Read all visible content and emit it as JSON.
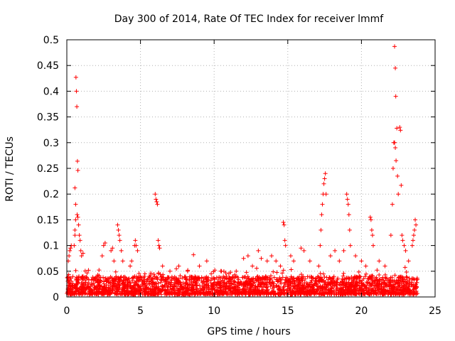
{
  "chart_data": {
    "type": "scatter",
    "title": "Day 300 of 2014, Rate Of TEC Index for receiver lmmf",
    "xlabel": "GPS time / hours",
    "ylabel": "ROTI / TECUs",
    "xlim": [
      0,
      25
    ],
    "ylim": [
      0,
      0.5
    ],
    "xticks": [
      0,
      5,
      10,
      15,
      20,
      25
    ],
    "yticks": [
      0,
      0.05,
      0.1,
      0.15,
      0.2,
      0.25,
      0.3,
      0.35,
      0.4,
      0.45,
      0.5
    ],
    "grid": true,
    "marker": "+",
    "series_color": "#ff0000",
    "background_band": {
      "x_range": [
        0,
        23.8
      ],
      "typical": [
        0.005,
        0.04
      ],
      "note": "dense continuous cluster of points along the bottom"
    },
    "series": [
      {
        "name": "ROTI",
        "points": [
          [
            0.1,
            0.07
          ],
          [
            0.15,
            0.08
          ],
          [
            0.2,
            0.09
          ],
          [
            0.25,
            0.095
          ],
          [
            0.3,
            0.1
          ],
          [
            0.5,
            0.1
          ],
          [
            0.55,
            0.12
          ],
          [
            0.55,
            0.13
          ],
          [
            0.6,
            0.15
          ],
          [
            0.6,
            0.18
          ],
          [
            0.55,
            0.212
          ],
          [
            0.62,
            0.427
          ],
          [
            0.65,
            0.4
          ],
          [
            0.68,
            0.37
          ],
          [
            0.72,
            0.264
          ],
          [
            0.75,
            0.246
          ],
          [
            0.7,
            0.16
          ],
          [
            0.75,
            0.155
          ],
          [
            0.8,
            0.14
          ],
          [
            0.85,
            0.12
          ],
          [
            0.9,
            0.11
          ],
          [
            0.95,
            0.09
          ],
          [
            1.0,
            0.08
          ],
          [
            1.1,
            0.085
          ],
          [
            2.4,
            0.08
          ],
          [
            2.5,
            0.1
          ],
          [
            2.6,
            0.105
          ],
          [
            3.0,
            0.09
          ],
          [
            3.1,
            0.095
          ],
          [
            3.2,
            0.07
          ],
          [
            3.45,
            0.14
          ],
          [
            3.5,
            0.13
          ],
          [
            3.55,
            0.12
          ],
          [
            3.6,
            0.11
          ],
          [
            3.7,
            0.09
          ],
          [
            3.8,
            0.07
          ],
          [
            4.3,
            0.06
          ],
          [
            4.4,
            0.07
          ],
          [
            4.6,
            0.1
          ],
          [
            4.65,
            0.11
          ],
          [
            4.7,
            0.1
          ],
          [
            4.8,
            0.09
          ],
          [
            5.0,
            0.04
          ],
          [
            5.3,
            0.045
          ],
          [
            5.6,
            0.04
          ],
          [
            6.0,
            0.2
          ],
          [
            6.05,
            0.19
          ],
          [
            6.1,
            0.185
          ],
          [
            6.15,
            0.18
          ],
          [
            6.2,
            0.11
          ],
          [
            6.25,
            0.1
          ],
          [
            6.3,
            0.095
          ],
          [
            6.5,
            0.06
          ],
          [
            7.0,
            0.05
          ],
          [
            7.6,
            0.06
          ],
          [
            8.2,
            0.05
          ],
          [
            8.6,
            0.082
          ],
          [
            9.0,
            0.06
          ],
          [
            9.5,
            0.07
          ],
          [
            9.8,
            0.045
          ],
          [
            10.5,
            0.05
          ],
          [
            11.0,
            0.045
          ],
          [
            11.5,
            0.05
          ],
          [
            12.0,
            0.075
          ],
          [
            12.3,
            0.08
          ],
          [
            12.6,
            0.06
          ],
          [
            13.0,
            0.09
          ],
          [
            13.2,
            0.075
          ],
          [
            13.6,
            0.07
          ],
          [
            13.9,
            0.08
          ],
          [
            14.2,
            0.07
          ],
          [
            14.5,
            0.06
          ],
          [
            14.7,
            0.145
          ],
          [
            14.75,
            0.14
          ],
          [
            14.8,
            0.11
          ],
          [
            14.85,
            0.1
          ],
          [
            15.2,
            0.08
          ],
          [
            15.4,
            0.07
          ],
          [
            15.9,
            0.095
          ],
          [
            16.1,
            0.09
          ],
          [
            16.5,
            0.07
          ],
          [
            17.1,
            0.06
          ],
          [
            17.2,
            0.1
          ],
          [
            17.25,
            0.13
          ],
          [
            17.3,
            0.16
          ],
          [
            17.35,
            0.18
          ],
          [
            17.4,
            0.2
          ],
          [
            17.45,
            0.22
          ],
          [
            17.5,
            0.23
          ],
          [
            17.55,
            0.24
          ],
          [
            17.6,
            0.2
          ],
          [
            17.9,
            0.08
          ],
          [
            18.2,
            0.09
          ],
          [
            18.5,
            0.07
          ],
          [
            18.8,
            0.09
          ],
          [
            19.0,
            0.2
          ],
          [
            19.05,
            0.19
          ],
          [
            19.1,
            0.18
          ],
          [
            19.15,
            0.16
          ],
          [
            19.2,
            0.13
          ],
          [
            19.25,
            0.1
          ],
          [
            19.6,
            0.08
          ],
          [
            20.0,
            0.07
          ],
          [
            20.3,
            0.06
          ],
          [
            20.6,
            0.155
          ],
          [
            20.65,
            0.15
          ],
          [
            20.7,
            0.13
          ],
          [
            20.75,
            0.12
          ],
          [
            20.8,
            0.1
          ],
          [
            21.2,
            0.07
          ],
          [
            21.6,
            0.06
          ],
          [
            22.0,
            0.12
          ],
          [
            22.1,
            0.18
          ],
          [
            22.15,
            0.25
          ],
          [
            22.2,
            0.3
          ],
          [
            22.25,
            0.3
          ],
          [
            22.3,
            0.29
          ],
          [
            22.35,
            0.265
          ],
          [
            22.25,
            0.487
          ],
          [
            22.3,
            0.445
          ],
          [
            22.33,
            0.39
          ],
          [
            22.4,
            0.328
          ],
          [
            22.45,
            0.235
          ],
          [
            22.5,
            0.2
          ],
          [
            22.6,
            0.33
          ],
          [
            22.65,
            0.324
          ],
          [
            22.7,
            0.217
          ],
          [
            22.75,
            0.12
          ],
          [
            22.8,
            0.11
          ],
          [
            22.9,
            0.1
          ],
          [
            23.0,
            0.09
          ],
          [
            23.2,
            0.07
          ],
          [
            23.45,
            0.1
          ],
          [
            23.5,
            0.11
          ],
          [
            23.55,
            0.12
          ],
          [
            23.6,
            0.13
          ],
          [
            23.65,
            0.15
          ],
          [
            23.7,
            0.14
          ]
        ]
      }
    ]
  }
}
